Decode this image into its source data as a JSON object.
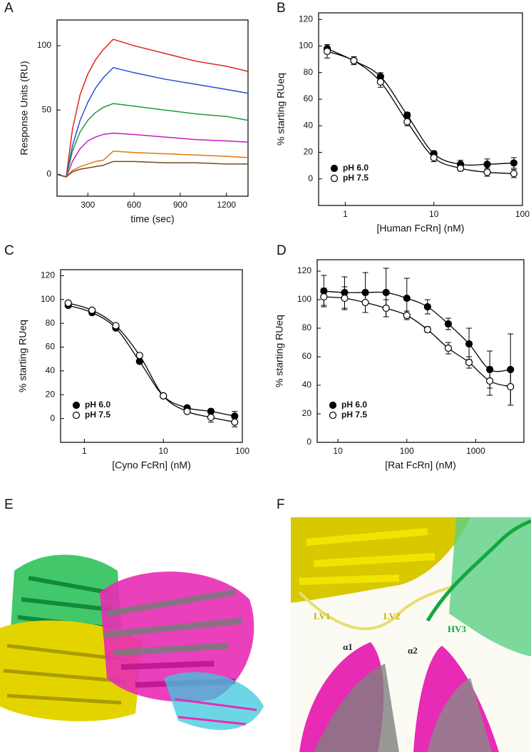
{
  "chart_data": [
    {
      "type": "line",
      "panel": "A",
      "x_label": "time (sec)",
      "y_label": "Response Units (RU)",
      "xlim": [
        100,
        1340
      ],
      "ylim": [
        -17,
        120
      ],
      "xticks": [
        300,
        600,
        900,
        1200
      ],
      "yticks": [
        0,
        50,
        100
      ],
      "x": [
        100,
        160,
        200,
        250,
        300,
        350,
        400,
        465,
        600,
        800,
        1000,
        1200,
        1340
      ],
      "series": [
        {
          "color": "#e0241c",
          "values": [
            0,
            -2,
            35,
            62,
            78,
            89,
            97,
            105,
            100,
            94,
            88,
            84,
            80
          ]
        },
        {
          "color": "#2a4fd6",
          "values": [
            0,
            -2,
            22,
            42,
            56,
            67,
            75,
            83,
            79,
            74,
            70,
            66,
            63
          ]
        },
        {
          "color": "#1f9a3a",
          "values": [
            0,
            -2,
            18,
            33,
            42,
            48,
            52,
            55,
            53,
            50,
            47,
            45,
            42
          ]
        },
        {
          "color": "#c21fbf",
          "values": [
            0,
            -2,
            10,
            20,
            26,
            29,
            31,
            32,
            31,
            29,
            27,
            26,
            25
          ]
        },
        {
          "color": "#e07a12",
          "values": [
            0,
            -2,
            3,
            6,
            8,
            10,
            11,
            18,
            17,
            16,
            15,
            14,
            13
          ]
        },
        {
          "color": "#7a4a1a",
          "values": [
            0,
            -2,
            2,
            4,
            5,
            6,
            7,
            10,
            10,
            9,
            9,
            8,
            8
          ]
        }
      ]
    },
    {
      "type": "scatter",
      "panel": "B",
      "x_label": "[Human FcRn] (nM)",
      "y_label": "% starting RUeq",
      "log_x": true,
      "legend": "lower left",
      "xlim": [
        0.5,
        100
      ],
      "ylim": [
        -20,
        125
      ],
      "xticks": [
        1,
        10,
        100
      ],
      "yticks": [
        0,
        20,
        40,
        60,
        80,
        100,
        120
      ],
      "x": [
        0.625,
        1.25,
        2.5,
        5,
        10,
        20,
        40,
        80
      ],
      "series": [
        {
          "name": "pH 6.0",
          "color": "#000000",
          "marker": "filled",
          "values": [
            98,
            89,
            77,
            48,
            19,
            11,
            11,
            12
          ],
          "errors": [
            3,
            2,
            3,
            2,
            2,
            3,
            4,
            4
          ]
        },
        {
          "name": "pH 7.5",
          "color": "#000000",
          "marker": "open",
          "values": [
            96,
            89,
            73,
            43,
            16,
            8,
            5,
            4
          ],
          "errors": [
            5,
            3,
            4,
            3,
            3,
            2,
            3,
            3
          ]
        }
      ]
    },
    {
      "type": "scatter",
      "panel": "C",
      "x_label": "[Cyno FcRn] (nM)",
      "y_label": "% starting RUeq",
      "log_x": true,
      "legend": "lower left",
      "xlim": [
        0.5,
        100
      ],
      "ylim": [
        -20,
        125
      ],
      "xticks": [
        1,
        10,
        100
      ],
      "yticks": [
        0,
        20,
        40,
        60,
        80,
        100,
        120
      ],
      "x": [
        0.625,
        1.25,
        2.5,
        5,
        10,
        20,
        40,
        80
      ],
      "series": [
        {
          "name": "pH 6.0",
          "color": "#000000",
          "marker": "filled",
          "values": [
            95,
            89,
            76,
            48,
            19,
            9,
            6,
            2
          ],
          "errors": [
            1,
            1,
            1,
            1,
            1,
            1,
            2,
            4
          ]
        },
        {
          "name": "pH 7.5",
          "color": "#000000",
          "marker": "open",
          "values": [
            97,
            91,
            78,
            53,
            19,
            6,
            1,
            -3
          ],
          "errors": [
            1,
            1,
            1,
            1,
            1,
            1,
            4,
            4
          ]
        }
      ]
    },
    {
      "type": "scatter",
      "panel": "D",
      "x_label": "[Rat FcRn] (nM)",
      "y_label": "% starting RUeq",
      "log_x": true,
      "legend": "lower left",
      "xlim": [
        5,
        5000
      ],
      "ylim": [
        0,
        128
      ],
      "xticks": [
        10,
        100,
        1000
      ],
      "yticks": [
        0,
        20,
        40,
        60,
        80,
        100,
        120
      ],
      "x": [
        6.25,
        12.5,
        25,
        50,
        100,
        200,
        400,
        800,
        1600,
        3200
      ],
      "series": [
        {
          "name": "pH 6.0",
          "color": "#000000",
          "marker": "filled",
          "values": [
            106,
            105,
            105,
            105,
            101,
            95,
            83,
            69,
            51,
            51
          ],
          "errors": [
            11,
            11,
            14,
            17,
            14,
            5,
            4,
            11,
            13,
            25
          ]
        },
        {
          "name": "pH 7.5",
          "color": "#000000",
          "marker": "open",
          "values": [
            102,
            101,
            98,
            94,
            89,
            79,
            66,
            56,
            43,
            39
          ],
          "errors": [
            6,
            8,
            7,
            6,
            3,
            2,
            4,
            4,
            10,
            13
          ]
        }
      ]
    }
  ],
  "images": [
    {
      "panel": "E"
    },
    {
      "panel": "F",
      "labels": [
        "LV1",
        "LV2",
        "HV3",
        "α1",
        "α2"
      ]
    }
  ]
}
